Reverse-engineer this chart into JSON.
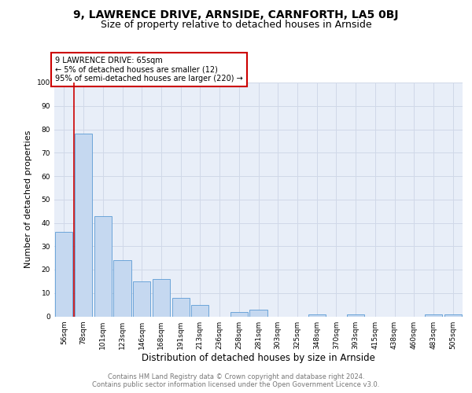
{
  "title": "9, LAWRENCE DRIVE, ARNSIDE, CARNFORTH, LA5 0BJ",
  "subtitle": "Size of property relative to detached houses in Arnside",
  "xlabel": "Distribution of detached houses by size in Arnside",
  "ylabel": "Number of detached properties",
  "categories": [
    "56sqm",
    "78sqm",
    "101sqm",
    "123sqm",
    "146sqm",
    "168sqm",
    "191sqm",
    "213sqm",
    "236sqm",
    "258sqm",
    "281sqm",
    "303sqm",
    "325sqm",
    "348sqm",
    "370sqm",
    "393sqm",
    "415sqm",
    "438sqm",
    "460sqm",
    "483sqm",
    "505sqm"
  ],
  "values": [
    36,
    78,
    43,
    24,
    15,
    16,
    8,
    5,
    0,
    2,
    3,
    0,
    0,
    1,
    0,
    1,
    0,
    0,
    0,
    1,
    1
  ],
  "bar_color": "#c5d8f0",
  "bar_edge_color": "#5b9bd5",
  "vline_x": 0.5,
  "vline_color": "#cc0000",
  "annotation_title": "9 LAWRENCE DRIVE: 65sqm",
  "annotation_line1": "← 5% of detached houses are smaller (12)",
  "annotation_line2": "95% of semi-detached houses are larger (220) →",
  "annotation_box_color": "#ffffff",
  "annotation_box_edge": "#cc0000",
  "ylim": [
    0,
    100
  ],
  "yticks": [
    0,
    10,
    20,
    30,
    40,
    50,
    60,
    70,
    80,
    90,
    100
  ],
  "grid_color": "#d0d8e8",
  "background_color": "#e8eef8",
  "footer_line1": "Contains HM Land Registry data © Crown copyright and database right 2024.",
  "footer_line2": "Contains public sector information licensed under the Open Government Licence v3.0.",
  "title_fontsize": 10,
  "subtitle_fontsize": 9,
  "xlabel_fontsize": 8.5,
  "ylabel_fontsize": 8,
  "tick_fontsize": 6.5,
  "footer_fontsize": 6,
  "ann_fontsize": 7
}
